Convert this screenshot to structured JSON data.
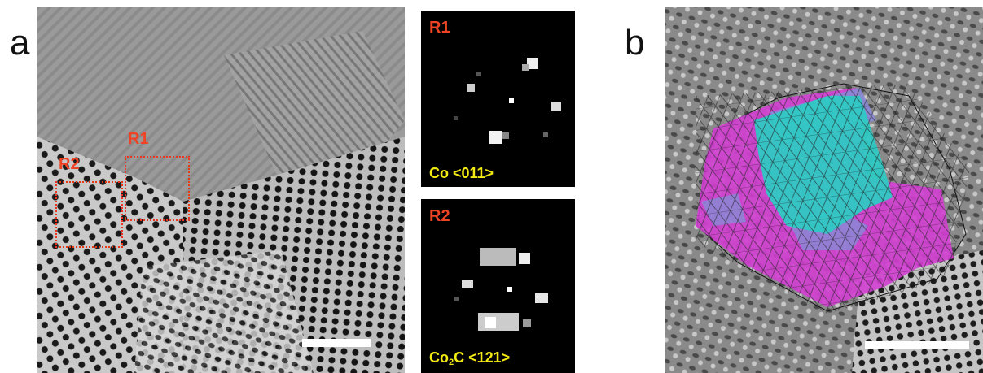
{
  "figure": {
    "panel_a_letter": "a",
    "panel_b_letter": "b",
    "hrtem_image": {
      "regions": [
        {
          "id": "R1",
          "label": "R1"
        },
        {
          "id": "R2",
          "label": "R2"
        }
      ],
      "box_color": "#e8361f",
      "label_color": "#ef4423"
    },
    "fft_insets": [
      {
        "title": "R1",
        "caption_main": "Co <011>",
        "caption_sub": ""
      },
      {
        "title": "R2",
        "caption_pre": "Co",
        "caption_sub": "2",
        "caption_post": "C <121>"
      }
    ],
    "caption_color": "#f2ea12",
    "title_color": "#ef4423",
    "model_overlay": {
      "colors": {
        "magenta": "#d23ed2",
        "cyan": "#2ec9c3",
        "lavender": "#8a88d6"
      }
    }
  }
}
